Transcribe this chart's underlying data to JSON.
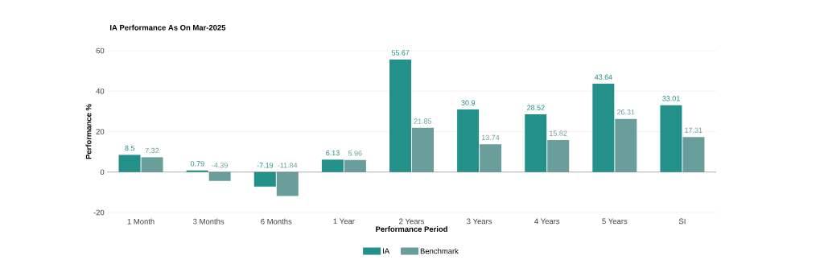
{
  "chart_data": {
    "type": "bar",
    "title": "IA Performance As On Mar-2025",
    "xlabel": "Performance Period",
    "ylabel": "Performance %",
    "categories": [
      "1 Month",
      "3 Months",
      "6 Months",
      "1 Year",
      "2 Years",
      "3 Years",
      "4 Years",
      "5 Years",
      "SI"
    ],
    "series": [
      {
        "name": "IA",
        "color": "#239089",
        "values": [
          8.5,
          0.79,
          -7.19,
          6.13,
          55.67,
          30.9,
          28.52,
          43.64,
          33.01
        ]
      },
      {
        "name": "Benchmark",
        "color": "#6a9e9b",
        "values": [
          7.32,
          -4.39,
          -11.84,
          5.96,
          21.85,
          13.74,
          15.82,
          26.31,
          17.31
        ]
      }
    ],
    "ylim": [
      -20,
      60
    ],
    "yticks": [
      -20,
      0,
      20,
      40,
      60
    ],
    "grid": "y",
    "legend": "bottom",
    "data_labels": true
  }
}
